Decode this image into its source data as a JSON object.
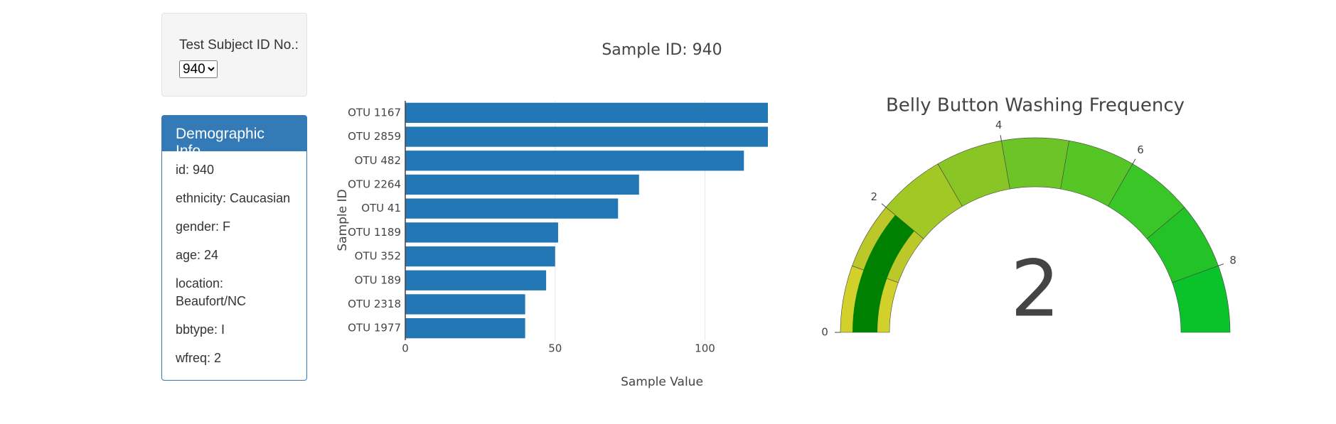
{
  "selector": {
    "label": "Test Subject ID No.:",
    "selected": "940"
  },
  "demographics": {
    "title": "Demographic Info",
    "items": [
      "id: 940",
      "ethnicity: Caucasian",
      "gender: F",
      "age: 24",
      "location: Beaufort/NC",
      "bbtype: I",
      "wfreq: 2"
    ]
  },
  "chart_data": [
    {
      "type": "bar",
      "orientation": "h",
      "title": "Sample ID: 940",
      "x_label": "Sample Value",
      "y_label": "Sample ID",
      "categories": [
        "OTU 1167",
        "OTU 2859",
        "OTU 482",
        "OTU 2264",
        "OTU 41",
        "OTU 1189",
        "OTU 352",
        "OTU 189",
        "OTU 2318",
        "OTU 1977"
      ],
      "values": [
        121,
        121,
        113,
        78,
        71,
        51,
        50,
        47,
        40,
        40
      ],
      "color": "#2377b4",
      "xlim": [
        0,
        121
      ],
      "xticks": [
        0,
        50,
        100
      ],
      "grid": true
    },
    {
      "type": "gauge",
      "title": "Belly Button Washing Frequency",
      "value": 2,
      "range": [
        0,
        9
      ],
      "ticks": [
        0,
        2,
        4,
        6,
        8
      ],
      "bar_color": "#008000",
      "steps": [
        {
          "range": [
            0,
            1
          ],
          "color": "#d2d12c"
        },
        {
          "range": [
            1,
            2
          ],
          "color": "#bcc72a"
        },
        {
          "range": [
            2,
            3
          ],
          "color": "#a2c826"
        },
        {
          "range": [
            3,
            4
          ],
          "color": "#89c625"
        },
        {
          "range": [
            4,
            5
          ],
          "color": "#6dc426"
        },
        {
          "range": [
            5,
            6
          ],
          "color": "#55c626"
        },
        {
          "range": [
            6,
            7
          ],
          "color": "#3bc627"
        },
        {
          "range": [
            7,
            8
          ],
          "color": "#23c328"
        },
        {
          "range": [
            8,
            9
          ],
          "color": "#0ac32a"
        }
      ]
    }
  ]
}
